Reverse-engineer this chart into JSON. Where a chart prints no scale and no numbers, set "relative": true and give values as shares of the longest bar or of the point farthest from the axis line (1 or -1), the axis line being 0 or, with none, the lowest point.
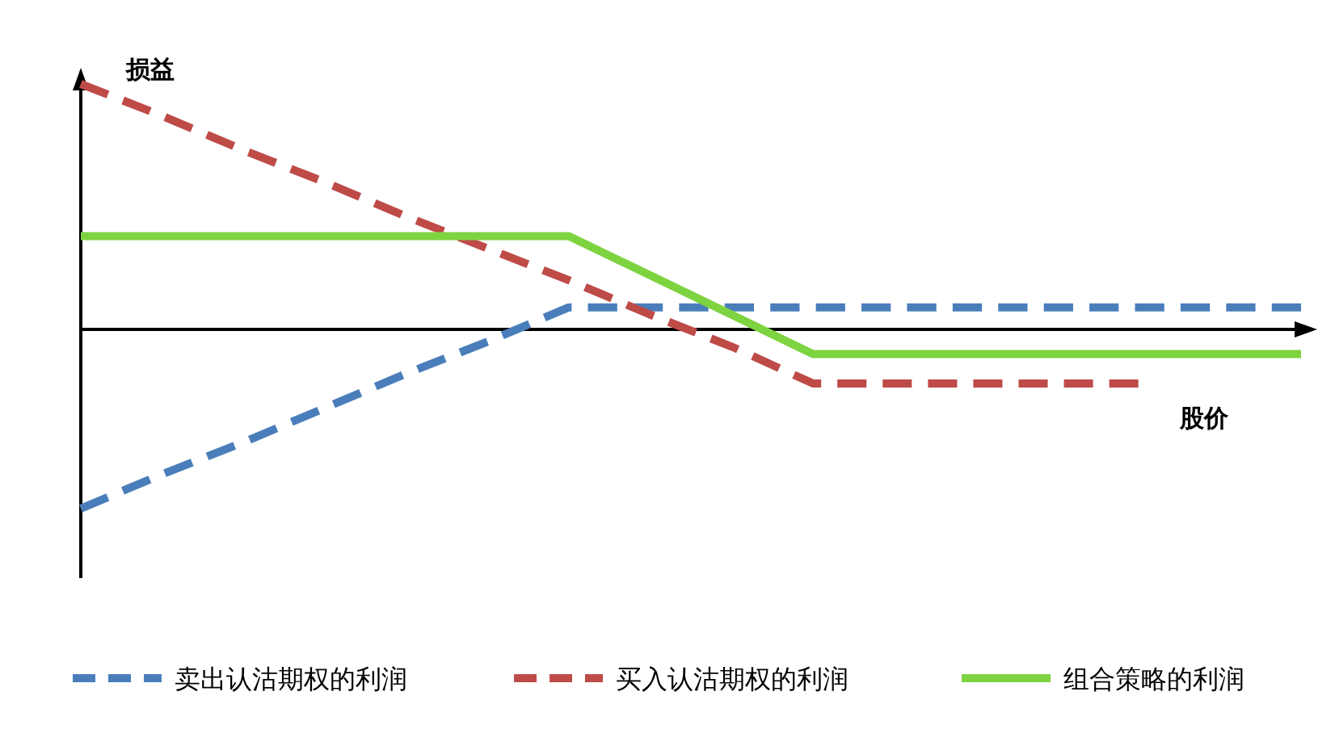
{
  "chart_data": {
    "type": "line",
    "relative": true,
    "xlabel": "股价",
    "ylabel": "损益",
    "legend": "bottom",
    "categories": [
      null,
      null,
      null,
      null,
      null,
      null,
      null,
      null,
      null,
      null,
      null,
      null,
      null,
      null,
      null,
      null
    ],
    "series": [
      {
        "name": "卖出认沽期权的利润",
        "color": "#4a7ebb",
        "line_style": "dashed",
        "values": [
          -0.73,
          -0.59,
          -0.46,
          -0.32,
          -0.18,
          -0.05,
          0.09,
          0.09,
          0.09,
          0.09,
          0.09,
          0.09,
          0.09,
          0.09,
          0.09,
          0.09
        ]
      },
      {
        "name": "买入认沽期权的利润",
        "color": "#be4b48",
        "line_style": "dashed",
        "values": [
          1,
          0.87,
          0.73,
          0.6,
          0.46,
          0.33,
          0.2,
          0.06,
          -0.07,
          -0.22,
          -0.22,
          -0.22,
          -0.22,
          -0.22,
          null,
          null
        ]
      },
      {
        "name": "组合策略的利润",
        "color": "#7ed340",
        "line_style": "solid",
        "values": [
          0.38,
          0.38,
          0.38,
          0.38,
          0.38,
          0.38,
          0.38,
          0.22,
          0.06,
          -0.1,
          -0.1,
          -0.1,
          -0.1,
          -0.1,
          -0.1,
          -0.1
        ]
      }
    ]
  }
}
